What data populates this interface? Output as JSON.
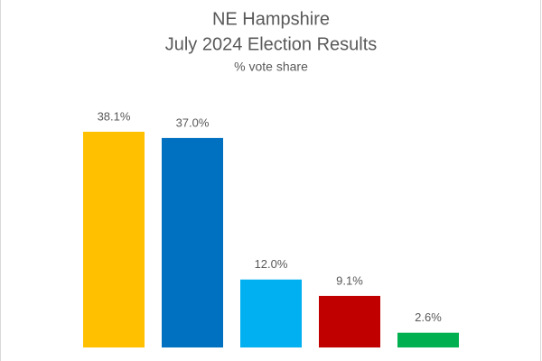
{
  "chart_data": {
    "type": "bar",
    "title": [
      "NE Hampshire",
      "July 2024 Election Results"
    ],
    "subtitle": "% vote share",
    "categories": [
      null,
      null,
      null,
      null,
      null
    ],
    "values": [
      38.1,
      37.0,
      12.0,
      9.1,
      2.6
    ],
    "value_labels": [
      "38.1%",
      "37.0%",
      "12.0%",
      "9.1%",
      "2.6%"
    ],
    "colors": [
      "#ffc000",
      "#0070c0",
      "#00b0f0",
      "#c00000",
      "#00b050"
    ]
  }
}
